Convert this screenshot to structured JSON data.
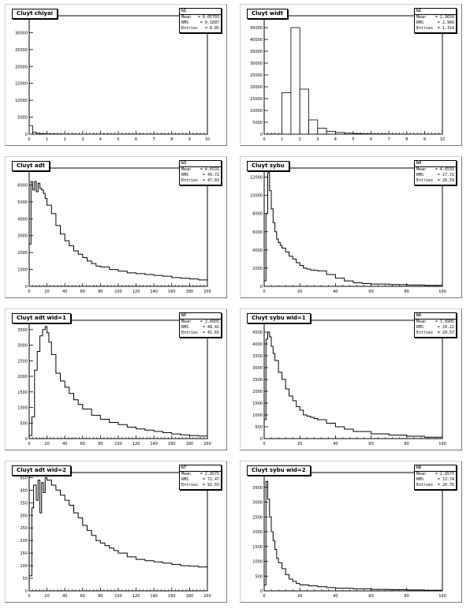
{
  "chart_data": [
    {
      "type": "bar",
      "title": "Cluyt chiyai",
      "stats": {
        "header": "h1",
        "mean_label": "Mean",
        "mean": "= 0.05703",
        "rms_label": "RMS",
        "rms": "= 0.1097",
        "entries_label": "Entries",
        "entries": "= 8.85"
      },
      "xlim": [
        0,
        10
      ],
      "ylim": [
        0,
        35000
      ],
      "xticks": [
        "0",
        "1",
        "2",
        "3",
        "4",
        "5",
        "6",
        "7",
        "8",
        "9",
        "10"
      ],
      "yticks": [
        "0",
        "5000",
        "10000",
        "15000",
        "20000",
        "25000",
        "30000",
        "35000"
      ],
      "bin_width": 0.2,
      "values": [
        2500,
        600,
        250,
        150,
        100,
        80,
        60,
        50,
        40,
        30,
        25,
        20,
        15,
        12,
        10,
        8,
        6,
        5,
        4,
        3,
        2,
        2,
        1,
        1,
        1,
        0,
        0,
        0,
        0,
        0,
        0,
        0,
        0,
        0,
        0,
        0,
        0,
        0,
        0,
        0,
        0,
        0,
        0,
        0,
        0,
        0,
        0,
        0,
        0,
        0
      ]
    },
    {
      "type": "bar",
      "title": "Cluyt widt",
      "stats": {
        "header": "h2",
        "mean_label": "Mean",
        "mean": "= 2.9650",
        "rms_label": "RMS",
        "rms": "= 2.966",
        "entries_label": "Entries",
        "entries": "= 1.314"
      },
      "xlim": [
        0,
        10
      ],
      "ylim": [
        0,
        50000
      ],
      "xticks": [
        "0",
        "1",
        "2",
        "3",
        "4",
        "5",
        "6",
        "7",
        "8",
        "9",
        "10"
      ],
      "yticks": [
        "0",
        "5000",
        "10000",
        "15000",
        "20000",
        "25000",
        "30000",
        "35000",
        "40000",
        "45000"
      ],
      "bin_width": 0.5,
      "values": [
        0,
        0,
        17500,
        45000,
        19000,
        6000,
        2500,
        1200,
        700,
        400,
        250,
        150,
        100,
        80,
        50,
        30,
        20,
        10,
        5,
        0
      ]
    },
    {
      "type": "line",
      "title": "Cluyt adt",
      "stats": {
        "header": "h3",
        "mean_label": "Mean",
        "mean": "= 4.6531",
        "rms_label": "RMS",
        "rms": "= 49.72",
        "entries_label": "Entries",
        "entries": "= 47.83"
      },
      "xlim": [
        0,
        200
      ],
      "ylim": [
        0,
        7000
      ],
      "xticks": [
        "0",
        "20",
        "40",
        "60",
        "80",
        "100",
        "120",
        "140",
        "160",
        "180",
        "200"
      ],
      "yticks": [
        "0",
        "1000",
        "2000",
        "3000",
        "4000",
        "5000",
        "6000"
      ],
      "x": [
        0,
        2,
        4,
        6,
        8,
        10,
        12,
        14,
        16,
        18,
        20,
        25,
        30,
        35,
        40,
        45,
        50,
        55,
        60,
        65,
        70,
        75,
        80,
        90,
        100,
        110,
        120,
        130,
        140,
        150,
        160,
        170,
        180,
        190,
        200
      ],
      "y": [
        2500,
        6200,
        5700,
        6200,
        5600,
        6100,
        5800,
        5700,
        5500,
        5200,
        4800,
        4300,
        3600,
        3100,
        2700,
        2400,
        2100,
        1900,
        1700,
        1500,
        1350,
        1200,
        1150,
        1000,
        900,
        800,
        750,
        700,
        650,
        600,
        520,
        480,
        440,
        380,
        300
      ]
    },
    {
      "type": "line",
      "title": "Cluyt sybu",
      "stats": {
        "header": "h4",
        "mean_label": "Mean",
        "mean": "= 4.6531",
        "rms_label": "RMS",
        "rms": "= 17.72",
        "entries_label": "Entries",
        "entries": "= 26.59"
      },
      "xlim": [
        0,
        100
      ],
      "ylim": [
        0,
        13000
      ],
      "xticks": [
        "0",
        "20",
        "40",
        "60",
        "80",
        "100"
      ],
      "yticks": [
        "0",
        "2000",
        "4000",
        "6000",
        "8000",
        "10000",
        "12000"
      ],
      "x": [
        0,
        1,
        2,
        3,
        4,
        5,
        6,
        7,
        8,
        9,
        10,
        12,
        14,
        16,
        18,
        20,
        22,
        24,
        26,
        28,
        30,
        35,
        40,
        45,
        50,
        55,
        60,
        70,
        80,
        90,
        100
      ],
      "y": [
        600,
        8000,
        12500,
        10500,
        8500,
        7000,
        6000,
        5200,
        4800,
        4500,
        4200,
        3800,
        3300,
        3000,
        2600,
        2300,
        2000,
        1900,
        1800,
        1750,
        1700,
        1300,
        900,
        600,
        400,
        300,
        250,
        200,
        150,
        100,
        60
      ]
    },
    {
      "type": "line",
      "title": "Cluyt adt wid=1",
      "stats": {
        "header": "h5",
        "mean_label": "Mean",
        "mean": "= 3.8905",
        "rms_label": "RMS",
        "rms": "= 48.41",
        "entries_label": "Entries",
        "entries": "= 41.65"
      },
      "xlim": [
        0,
        200
      ],
      "ylim": [
        0,
        3800
      ],
      "xticks": [
        "0",
        "20",
        "40",
        "60",
        "80",
        "100",
        "120",
        "140",
        "160",
        "180",
        "200"
      ],
      "yticks": [
        "0",
        "500",
        "1000",
        "1500",
        "2000",
        "2500",
        "3000",
        "3500"
      ],
      "x": [
        0,
        3,
        6,
        9,
        12,
        15,
        18,
        20,
        22,
        25,
        30,
        35,
        40,
        45,
        50,
        55,
        60,
        70,
        80,
        90,
        100,
        110,
        120,
        130,
        140,
        150,
        160,
        170,
        180,
        190,
        200
      ],
      "y": [
        100,
        700,
        2200,
        2800,
        3300,
        3500,
        3600,
        3400,
        3100,
        2700,
        2100,
        1850,
        1650,
        1450,
        1250,
        1100,
        950,
        750,
        620,
        520,
        450,
        370,
        310,
        270,
        230,
        190,
        150,
        120,
        100,
        80,
        60
      ]
    },
    {
      "type": "line",
      "title": "Cluyt sybu wid=1",
      "stats": {
        "header": "h6",
        "mean_label": "Mean",
        "mean": "= 3.8905",
        "rms_label": "RMS",
        "rms": "= 29.21",
        "entries_label": "Entries",
        "entries": "= 20.57"
      },
      "xlim": [
        0,
        100
      ],
      "ylim": [
        0,
        5000
      ],
      "xticks": [
        "0",
        "20",
        "40",
        "60",
        "80",
        "100"
      ],
      "yticks": [
        "0",
        "500",
        "1000",
        "1500",
        "2000",
        "2500",
        "3000",
        "3500",
        "4000",
        "4500"
      ],
      "x": [
        0,
        1,
        2,
        3,
        4,
        5,
        6,
        8,
        10,
        12,
        14,
        16,
        18,
        20,
        22,
        24,
        26,
        28,
        30,
        35,
        40,
        45,
        50,
        60,
        70,
        80,
        90,
        100
      ],
      "y": [
        800,
        4200,
        4500,
        4300,
        3900,
        3600,
        3300,
        2800,
        2500,
        2100,
        1800,
        1600,
        1350,
        1200,
        1000,
        950,
        900,
        850,
        800,
        650,
        500,
        400,
        300,
        200,
        150,
        100,
        60,
        40
      ]
    },
    {
      "type": "line",
      "title": "Cluyt adt wid=2",
      "stats": {
        "header": "h7",
        "mean_label": "Mean",
        "mean": "= 2.8575",
        "rms_label": "RMS",
        "rms": "= 72.47",
        "entries_label": "Entries",
        "entries": "= 92.03"
      },
      "xlim": [
        0,
        200
      ],
      "ylim": [
        0,
        470
      ],
      "xticks": [
        "0",
        "20",
        "40",
        "60",
        "80",
        "100",
        "120",
        "140",
        "160",
        "180",
        "200"
      ],
      "yticks": [
        "0",
        "50",
        "100",
        "150",
        "200",
        "250",
        "300",
        "350",
        "400",
        "450"
      ],
      "x": [
        0,
        3,
        5,
        8,
        10,
        12,
        14,
        16,
        18,
        20,
        25,
        30,
        35,
        40,
        45,
        50,
        55,
        60,
        65,
        70,
        75,
        80,
        85,
        90,
        95,
        100,
        110,
        120,
        130,
        140,
        150,
        160,
        170,
        180,
        190,
        200
      ],
      "y": [
        60,
        330,
        420,
        360,
        440,
        310,
        430,
        390,
        450,
        440,
        420,
        400,
        380,
        360,
        340,
        310,
        290,
        260,
        240,
        220,
        200,
        190,
        180,
        170,
        160,
        150,
        135,
        125,
        120,
        115,
        110,
        105,
        100,
        98,
        95,
        95
      ]
    },
    {
      "type": "line",
      "title": "Cluyt sybu wid=2",
      "stats": {
        "header": "h8",
        "mean_label": "Mean",
        "mean": "= 2.8575",
        "rms_label": "RMS",
        "rms": "= 13.74",
        "entries_label": "Entries",
        "entries": "= 20.76"
      },
      "xlim": [
        0,
        100
      ],
      "ylim": [
        0,
        4000
      ],
      "xticks": [
        "0",
        "20",
        "40",
        "60",
        "80",
        "100"
      ],
      "yticks": [
        "0",
        "500",
        "1000",
        "1500",
        "2000",
        "2500",
        "3000",
        "3500"
      ],
      "x": [
        0,
        1,
        2,
        3,
        4,
        5,
        6,
        7,
        8,
        10,
        12,
        14,
        16,
        18,
        20,
        25,
        30,
        35,
        40,
        50,
        60,
        70,
        80,
        90,
        100
      ],
      "y": [
        200,
        3700,
        3100,
        2500,
        2000,
        1700,
        1400,
        1100,
        950,
        750,
        550,
        400,
        320,
        250,
        200,
        170,
        140,
        110,
        90,
        70,
        50,
        40,
        30,
        20,
        10
      ]
    }
  ]
}
